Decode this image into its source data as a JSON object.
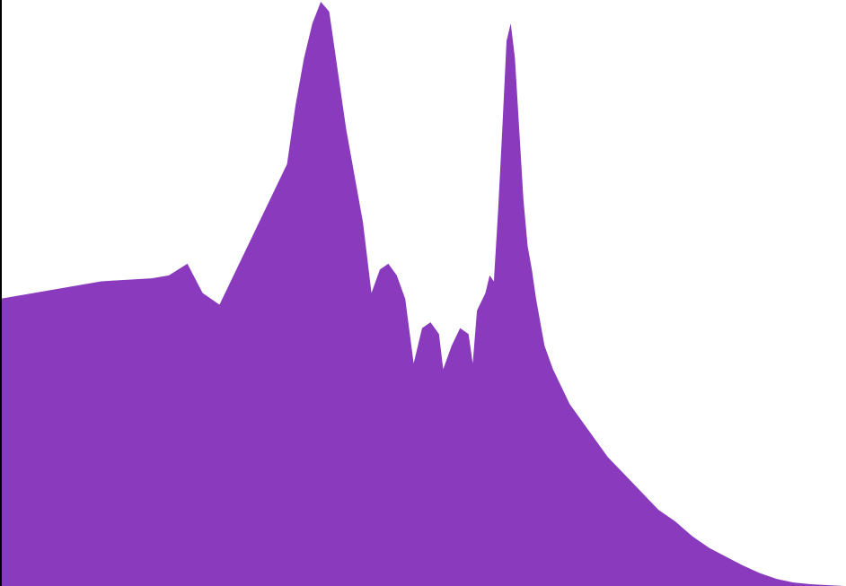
{
  "chart_data": {
    "type": "area",
    "title": "",
    "xlabel": "",
    "ylabel": "",
    "grid": false,
    "legend": "none",
    "xlim": [
      0,
      1
    ],
    "ylim": [
      0,
      1
    ],
    "fill_color": "#8a3bbd",
    "series": [
      {
        "values": [
          [
            0.0,
            0.49
          ],
          [
            0.04,
            0.5
          ],
          [
            0.08,
            0.51
          ],
          [
            0.12,
            0.52
          ],
          [
            0.18,
            0.525
          ],
          [
            0.2,
            0.53
          ],
          [
            0.222,
            0.55
          ],
          [
            0.24,
            0.5
          ],
          [
            0.26,
            0.48
          ],
          [
            0.28,
            0.54
          ],
          [
            0.3,
            0.6
          ],
          [
            0.32,
            0.66
          ],
          [
            0.34,
            0.72
          ],
          [
            0.35,
            0.82
          ],
          [
            0.36,
            0.9
          ],
          [
            0.37,
            0.96
          ],
          [
            0.38,
            0.997
          ],
          [
            0.39,
            0.98
          ],
          [
            0.4,
            0.88
          ],
          [
            0.41,
            0.78
          ],
          [
            0.42,
            0.7
          ],
          [
            0.43,
            0.62
          ],
          [
            0.44,
            0.5
          ],
          [
            0.45,
            0.54
          ],
          [
            0.46,
            0.55
          ],
          [
            0.47,
            0.53
          ],
          [
            0.48,
            0.49
          ],
          [
            0.49,
            0.38
          ],
          [
            0.5,
            0.44
          ],
          [
            0.51,
            0.45
          ],
          [
            0.52,
            0.43
          ],
          [
            0.525,
            0.37
          ],
          [
            0.535,
            0.41
          ],
          [
            0.545,
            0.44
          ],
          [
            0.555,
            0.43
          ],
          [
            0.56,
            0.38
          ],
          [
            0.565,
            0.47
          ],
          [
            0.575,
            0.5
          ],
          [
            0.58,
            0.53
          ],
          [
            0.585,
            0.52
          ],
          [
            0.59,
            0.64
          ],
          [
            0.595,
            0.78
          ],
          [
            0.6,
            0.93
          ],
          [
            0.605,
            0.96
          ],
          [
            0.61,
            0.9
          ],
          [
            0.615,
            0.78
          ],
          [
            0.62,
            0.66
          ],
          [
            0.625,
            0.58
          ],
          [
            0.63,
            0.54
          ],
          [
            0.635,
            0.49
          ],
          [
            0.645,
            0.41
          ],
          [
            0.655,
            0.37
          ],
          [
            0.665,
            0.34
          ],
          [
            0.675,
            0.31
          ],
          [
            0.69,
            0.28
          ],
          [
            0.705,
            0.25
          ],
          [
            0.72,
            0.22
          ],
          [
            0.74,
            0.19
          ],
          [
            0.76,
            0.16
          ],
          [
            0.78,
            0.13
          ],
          [
            0.8,
            0.11
          ],
          [
            0.82,
            0.085
          ],
          [
            0.84,
            0.065
          ],
          [
            0.86,
            0.05
          ],
          [
            0.88,
            0.035
          ],
          [
            0.9,
            0.022
          ],
          [
            0.92,
            0.012
          ],
          [
            0.94,
            0.006
          ],
          [
            0.96,
            0.003
          ],
          [
            0.98,
            0.0015
          ],
          [
            1.0,
            0.0
          ]
        ]
      }
    ]
  }
}
